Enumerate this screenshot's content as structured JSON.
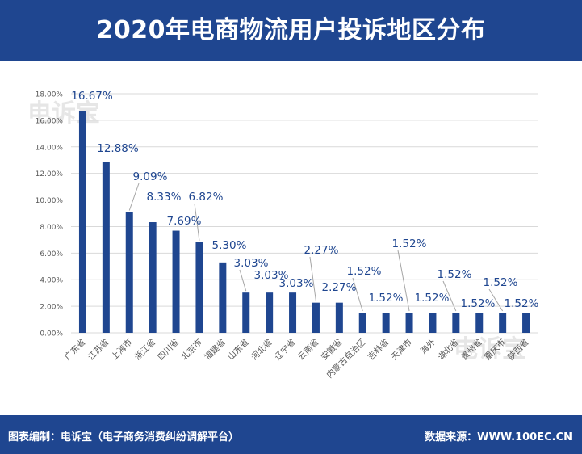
{
  "title": "2020年电商物流用户投诉地区分布",
  "footer": {
    "left": "图表编制：电诉宝（电子商务消费纠纷调解平台）",
    "right": "数据来源：WWW.100EC.CN"
  },
  "watermark": "电诉宝",
  "colors": {
    "header": "#1f4690",
    "bar": "#1f4690",
    "label": "#1f4690",
    "grid": "#d9d9d9",
    "tick": "#595959"
  },
  "chart_data": {
    "type": "bar",
    "categories": [
      "广东省",
      "江苏省",
      "上海市",
      "浙江省",
      "四川省",
      "北京市",
      "福建省",
      "山东省",
      "河北省",
      "辽宁省",
      "云南省",
      "安徽省",
      "内蒙古自治区",
      "吉林省",
      "天津市",
      "海外",
      "湖北省",
      "贵州省",
      "重庆市",
      "陕西省"
    ],
    "values": [
      16.67,
      12.88,
      9.09,
      8.33,
      7.69,
      6.82,
      5.3,
      3.03,
      3.03,
      3.03,
      2.27,
      2.27,
      1.52,
      1.52,
      1.52,
      1.52,
      1.52,
      1.52,
      1.52,
      1.52
    ],
    "data_labels": [
      "16.67%",
      "12.88%",
      "9.09%",
      "8.33%",
      "7.69%",
      "6.82%",
      "5.30%",
      "3.03%",
      "3.03%",
      "3.03%",
      "2.27%",
      "2.27%",
      "1.52%",
      "1.52%",
      "1.52%",
      "1.52%",
      "1.52%",
      "1.52%",
      "1.52%",
      "1.52%"
    ],
    "ytick_labels": [
      "0.00%",
      "2.00%",
      "4.00%",
      "6.00%",
      "8.00%",
      "10.00%",
      "12.00%",
      "14.00%",
      "16.00%",
      "18.00%"
    ],
    "ylim": [
      0,
      18
    ],
    "grid": true,
    "title": "2020年电商物流用户投诉地区分布",
    "xlabel": "",
    "ylabel": ""
  }
}
